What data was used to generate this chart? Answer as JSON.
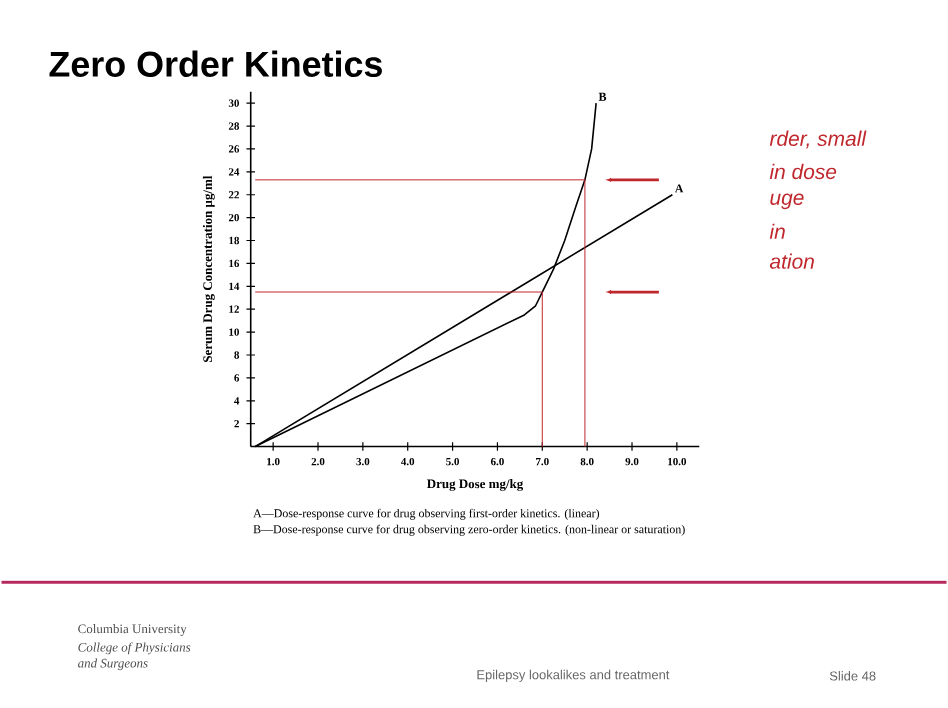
{
  "chart_data": {
    "type": "line",
    "title": "Zero Order Kinetics",
    "xlabel": "Drug Dose mg/kg",
    "ylabel": "Serum Drug Concentration µg/ml",
    "xlim": [
      0.5,
      10.5
    ],
    "ylim": [
      0,
      31
    ],
    "xticks": [
      {
        "value": 1,
        "label": "1.0"
      },
      {
        "value": 2,
        "label": "2.0"
      },
      {
        "value": 3,
        "label": "3.0"
      },
      {
        "value": 4,
        "label": "4.0"
      },
      {
        "value": 5,
        "label": "5.0"
      },
      {
        "value": 6,
        "label": "6.0"
      },
      {
        "value": 7,
        "label": "7.0"
      },
      {
        "value": 8,
        "label": "8.0"
      },
      {
        "value": 9,
        "label": "9.0"
      },
      {
        "value": 10,
        "label": "10.0"
      }
    ],
    "yticks": [
      2,
      4,
      6,
      8,
      10,
      12,
      14,
      16,
      18,
      20,
      22,
      24,
      26,
      28,
      30
    ],
    "marker": "none",
    "line_style": "solid",
    "series": [
      {
        "name": "A",
        "color": "#000000",
        "x": [
          0.6,
          9.9
        ],
        "values": [
          0,
          22
        ]
      },
      {
        "name": "B",
        "color": "#000000",
        "x": [
          0.6,
          6.6,
          6.85,
          7.0,
          7.25,
          7.5,
          7.75,
          7.95,
          8.1,
          8.2
        ],
        "values": [
          0,
          11.5,
          12.3,
          13.5,
          15.5,
          18,
          21,
          23.3,
          26,
          30
        ]
      },
      {
        "color": "#c0272d",
        "x": [
          0.6,
          7.0,
          7.0
        ],
        "values": [
          13.5,
          13.5,
          0
        ]
      },
      {
        "color": "#c0272d",
        "x": [
          0.6,
          7.95,
          7.95
        ],
        "values": [
          23.3,
          23.3,
          0
        ]
      }
    ],
    "annotations": [
      "rder, small",
      "in dose",
      "uge",
      "in",
      "ation",
      "A—Dose-response curve for drug observing first-order kinetics. (linear)",
      "B—Dose-response curve for drug observing zero-order kinetics. (non-linear or saturation)",
      "Columbia University",
      "College of Physicians and Surgeons",
      "Epilepsy lookalikes and treatment",
      "Slide 48"
    ]
  }
}
